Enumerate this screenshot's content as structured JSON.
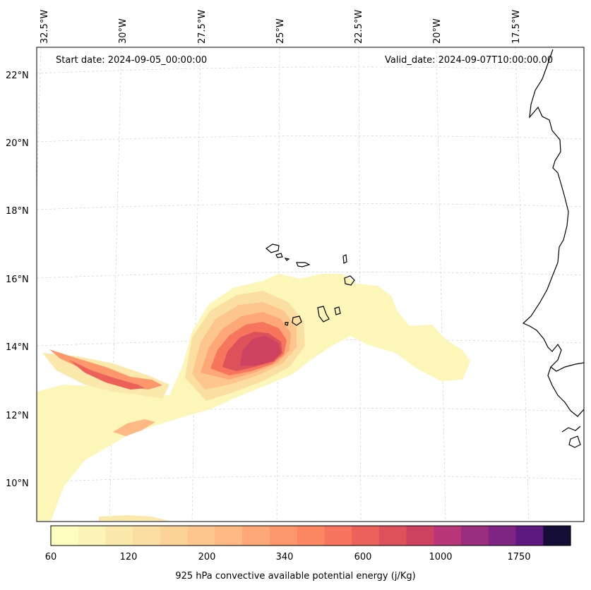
{
  "header": {
    "start_date": "Start date: 2024-09-05_00:00:00",
    "valid_date": "Valid_date: 2024-09-07T10:00:00.00"
  },
  "map": {
    "projection": "conic",
    "lon_labels": [
      "32.5°W",
      "30°W",
      "27.5°W",
      "25°W",
      "22.5°W",
      "20°W",
      "17.5°W"
    ],
    "lat_labels": [
      "22°N",
      "20°N",
      "18°N",
      "16°N",
      "14°N",
      "12°N",
      "10°N"
    ],
    "gridlines": true,
    "features": [
      "Cape Verde islands",
      "West African coastline"
    ]
  },
  "colorbar": {
    "title": "925 hPa convective available potential energy (j/Kg)",
    "tick_labels": [
      "60",
      "120",
      "200",
      "340",
      "600",
      "1000",
      "1750"
    ],
    "colors": [
      "#fcfdbf",
      "#fcf4b6",
      "#fbe9ac",
      "#fbdfa2",
      "#fbd398",
      "#fcc68e",
      "#fdb883",
      "#fea877",
      "#fe986c",
      "#fc8762",
      "#f6755c",
      "#ec625a",
      "#de515b",
      "#cd4260",
      "#b73779",
      "#9b2e7e",
      "#7e2482",
      "#5f187f",
      "#140e36"
    ]
  }
}
